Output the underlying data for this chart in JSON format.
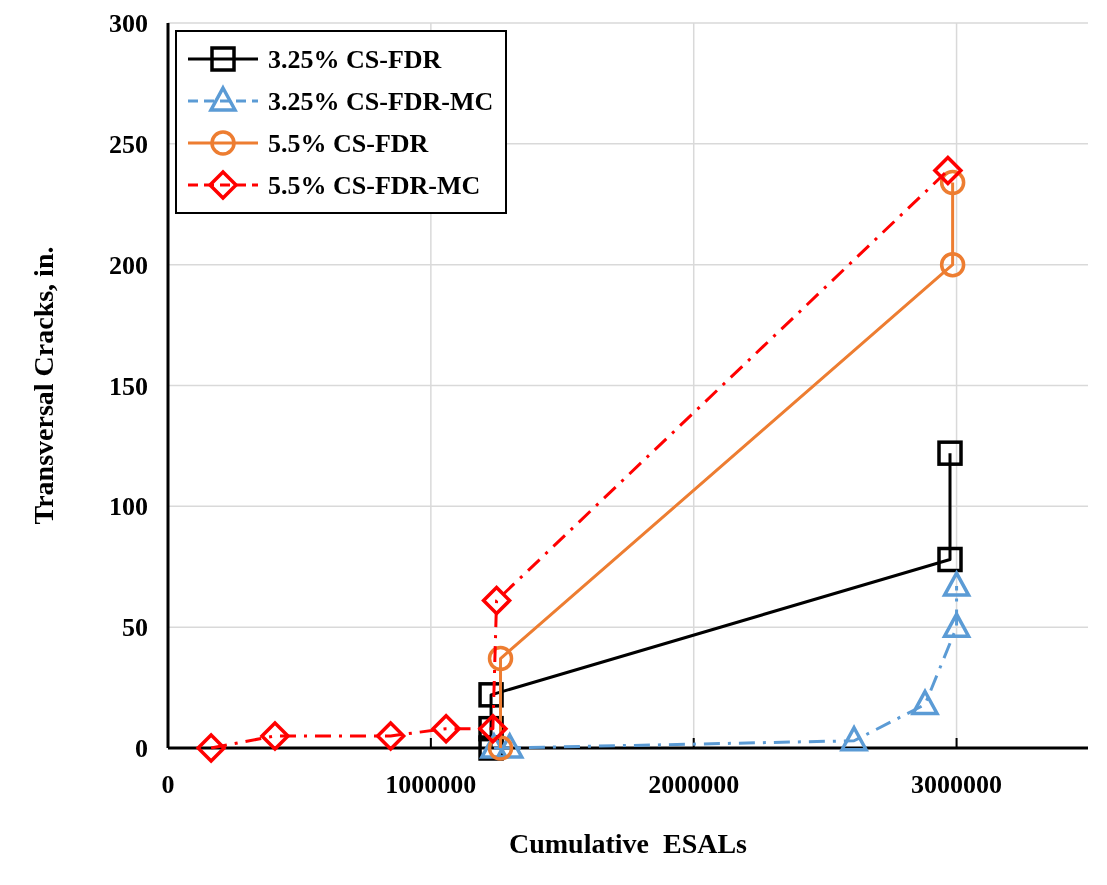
{
  "chart_data": {
    "type": "line",
    "xlabel": "Cumulative  ESALs",
    "ylabel": "Transversal Cracks, in.",
    "xlim": [
      0,
      3500000
    ],
    "xticks": [
      0,
      1000000,
      2000000,
      3000000
    ],
    "ylim": [
      0,
      300
    ],
    "yticks": [
      0,
      50,
      100,
      150,
      200,
      250,
      300
    ],
    "grid": true,
    "legend": "top left",
    "series": [
      {
        "name": "3.25% CS-FDR",
        "color": "#000000",
        "marker": "square",
        "line_style": "solid",
        "x": [
          1229000,
          1229000,
          1229000,
          2975000,
          2975000
        ],
        "values": [
          0,
          8,
          22,
          78,
          122
        ]
      },
      {
        "name": "3.25% CS-FDR-MC",
        "color": "#5b9bd5",
        "marker": "triangle",
        "line_style": "dashed",
        "x": [
          1240000,
          1300000,
          2610000,
          2880000,
          3000000,
          3000000
        ],
        "values": [
          0,
          0,
          3,
          18,
          50,
          67
        ]
      },
      {
        "name": "5.5% CS-FDR",
        "color": "#ed7d31",
        "marker": "circle",
        "line_style": "solid",
        "x": [
          1265000,
          1265000,
          2985000,
          2985000
        ],
        "values": [
          0,
          37,
          200,
          234
        ]
      },
      {
        "name": "5.5% CS-FDR-MC",
        "color": "#ff0000",
        "marker": "diamond",
        "line_style": "dashed",
        "x": [
          164000,
          407000,
          847000,
          1058000,
          1236000,
          1250000,
          2967000
        ],
        "values": [
          0,
          5,
          5,
          8,
          8,
          61,
          239
        ]
      }
    ]
  }
}
